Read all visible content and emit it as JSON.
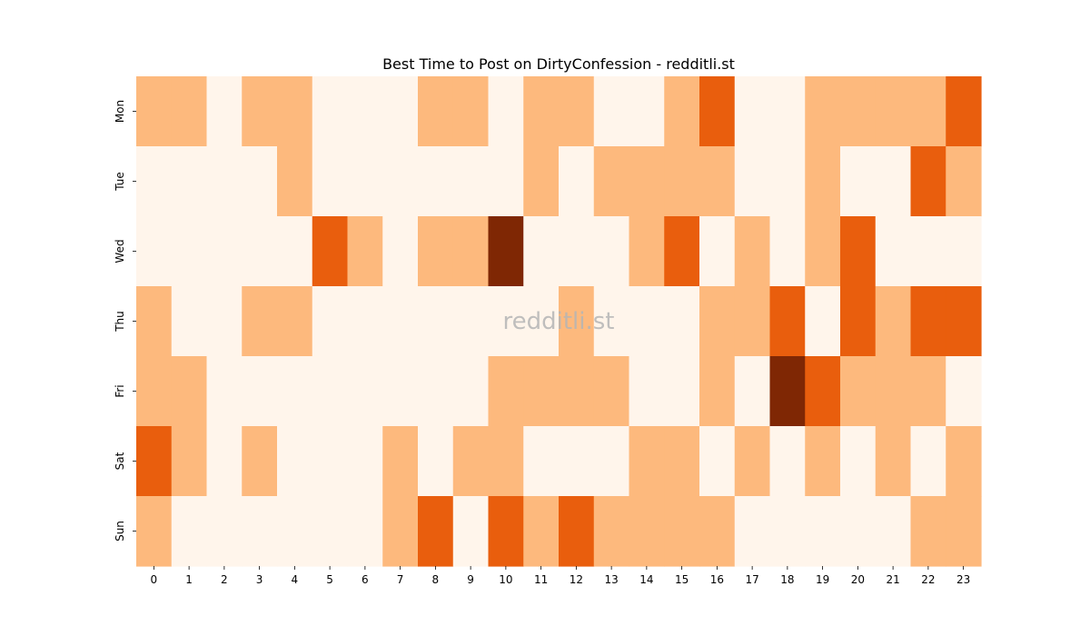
{
  "chart_data": {
    "type": "heatmap",
    "title": "Best Time to Post on DirtyConfession - redditli.st",
    "watermark": "redditli.st",
    "x_categories": [
      "0",
      "1",
      "2",
      "3",
      "4",
      "5",
      "6",
      "7",
      "8",
      "9",
      "10",
      "11",
      "12",
      "13",
      "14",
      "15",
      "16",
      "17",
      "18",
      "19",
      "20",
      "21",
      "22",
      "23"
    ],
    "y_categories": [
      "Mon",
      "Tue",
      "Wed",
      "Thu",
      "Fri",
      "Sat",
      "Sun"
    ],
    "xlabel": "",
    "ylabel": "",
    "colorbar": false,
    "colormap": "Oranges",
    "level_colors": [
      "#fff5eb",
      "#fdb97d",
      "#e95e0d",
      "#7f2704"
    ],
    "values": [
      [
        1,
        1,
        0,
        1,
        1,
        0,
        0,
        0,
        1,
        1,
        0,
        1,
        1,
        0,
        0,
        1,
        2,
        0,
        0,
        1,
        1,
        1,
        1,
        2
      ],
      [
        0,
        0,
        0,
        0,
        1,
        0,
        0,
        0,
        0,
        0,
        0,
        1,
        0,
        1,
        1,
        1,
        1,
        0,
        0,
        1,
        0,
        0,
        2,
        1
      ],
      [
        0,
        0,
        0,
        0,
        0,
        2,
        1,
        0,
        1,
        1,
        3,
        0,
        0,
        0,
        1,
        2,
        0,
        1,
        0,
        1,
        2,
        0,
        0,
        0
      ],
      [
        1,
        0,
        0,
        1,
        1,
        0,
        0,
        0,
        0,
        0,
        0,
        0,
        1,
        0,
        0,
        0,
        1,
        1,
        2,
        0,
        2,
        1,
        2,
        2
      ],
      [
        1,
        1,
        0,
        0,
        0,
        0,
        0,
        0,
        0,
        0,
        1,
        1,
        1,
        1,
        0,
        0,
        1,
        0,
        3,
        2,
        1,
        1,
        1,
        0
      ],
      [
        2,
        1,
        0,
        1,
        0,
        0,
        0,
        1,
        0,
        1,
        1,
        0,
        0,
        0,
        1,
        1,
        0,
        1,
        0,
        1,
        0,
        1,
        0,
        1
      ],
      [
        1,
        0,
        0,
        0,
        0,
        0,
        0,
        1,
        2,
        0,
        2,
        1,
        2,
        1,
        1,
        1,
        1,
        0,
        0,
        0,
        0,
        0,
        1,
        1
      ]
    ]
  }
}
